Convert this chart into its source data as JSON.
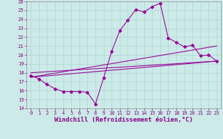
{
  "xlabel": "Windchill (Refroidissement éolien,°C)",
  "ylabel": "",
  "xlim": [
    -0.5,
    23.5
  ],
  "ylim": [
    14,
    26
  ],
  "xticks": [
    0,
    1,
    2,
    3,
    4,
    5,
    6,
    7,
    8,
    9,
    10,
    11,
    12,
    13,
    14,
    15,
    16,
    17,
    18,
    19,
    20,
    21,
    22,
    23
  ],
  "yticks": [
    14,
    15,
    16,
    17,
    18,
    19,
    20,
    21,
    22,
    23,
    24,
    25,
    26
  ],
  "bg_color": "#cceae8",
  "line_color": "#990099",
  "grid_color": "#aad4d0",
  "line1_x": [
    0,
    1,
    2,
    3,
    4,
    5,
    6,
    7,
    8,
    9,
    10,
    11,
    12,
    13,
    14,
    15,
    16,
    17,
    18,
    19,
    20,
    21,
    22,
    23
  ],
  "line1_y": [
    17.7,
    17.3,
    16.7,
    16.2,
    15.9,
    15.9,
    15.9,
    15.8,
    14.5,
    17.4,
    20.4,
    22.7,
    23.9,
    25.1,
    24.8,
    25.4,
    25.8,
    21.9,
    21.4,
    20.9,
    21.1,
    19.9,
    20.0,
    19.3
  ],
  "line2_x": [
    0,
    23
  ],
  "line2_y": [
    17.5,
    19.3
  ],
  "line3_x": [
    0,
    23
  ],
  "line3_y": [
    17.5,
    21.0
  ],
  "line4_x": [
    0,
    23
  ],
  "line4_y": [
    18.0,
    19.3
  ],
  "figsize": [
    3.2,
    2.0
  ],
  "dpi": 100,
  "tick_fontsize": 5.0,
  "xlabel_fontsize": 6.5
}
